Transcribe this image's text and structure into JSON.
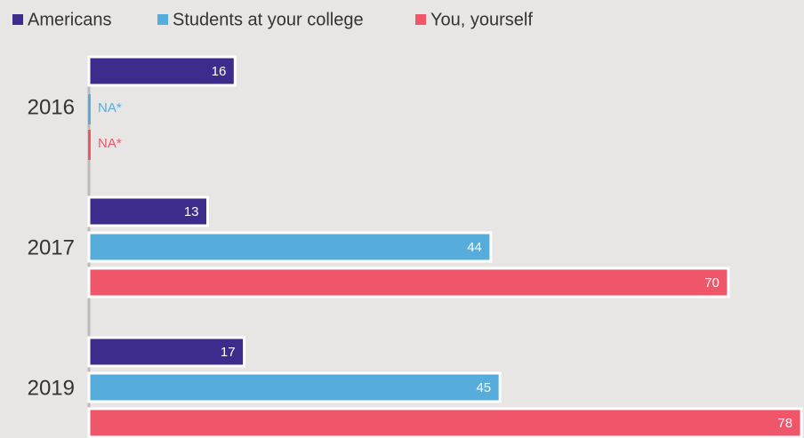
{
  "chart_data": {
    "type": "bar",
    "orientation": "horizontal",
    "categories": [
      "2016",
      "2017",
      "2019"
    ],
    "series": [
      {
        "name": "Americans",
        "color": "#3e2c8c",
        "values": [
          16,
          13,
          17
        ]
      },
      {
        "name": "Students at your college",
        "color": "#56acdb",
        "values": [
          null,
          44,
          45
        ],
        "value_labels": [
          "NA*",
          "44",
          "45"
        ]
      },
      {
        "name": "You, yourself",
        "color": "#ef566a",
        "values": [
          null,
          70,
          78
        ],
        "value_labels": [
          "NA*",
          "70",
          "78"
        ]
      }
    ],
    "legend": "top-left"
  }
}
